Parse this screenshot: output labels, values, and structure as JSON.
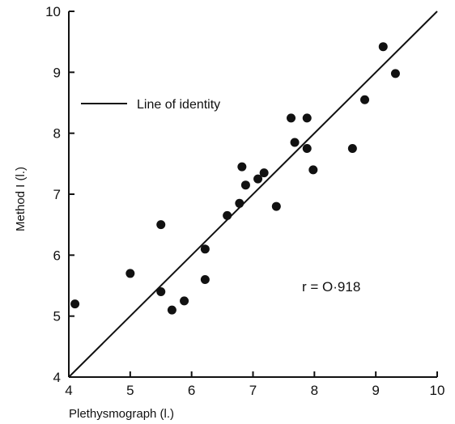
{
  "chart_data": {
    "type": "scatter",
    "title": "",
    "xlabel": "Plethysmograph (l.)",
    "ylabel": "Method I (l.)",
    "xlim": [
      4,
      10
    ],
    "ylim": [
      4,
      10
    ],
    "xticks": [
      "4",
      "5",
      "6",
      "7",
      "8",
      "9",
      "10"
    ],
    "yticks": [
      "4",
      "5",
      "6",
      "7",
      "8",
      "9",
      "10"
    ],
    "grid": false,
    "legend": {
      "placement": "top-left",
      "entries": [
        "Line of identity"
      ]
    },
    "annotations": [
      "r = O·918"
    ],
    "reference_line": {
      "name": "Line of identity",
      "from": [
        4,
        4
      ],
      "to": [
        10,
        10
      ]
    },
    "series": [
      {
        "x": [
          4.1,
          5.0,
          5.5,
          5.5,
          5.68,
          5.88,
          6.22,
          6.22,
          6.58,
          6.78,
          6.82,
          6.88,
          7.08,
          7.18,
          7.38,
          7.62,
          7.68,
          7.88,
          7.88,
          7.98,
          8.62,
          8.82,
          9.12,
          9.32
        ],
        "y": [
          5.2,
          5.7,
          6.5,
          5.4,
          5.1,
          5.25,
          6.1,
          5.6,
          6.65,
          6.85,
          7.45,
          7.15,
          7.25,
          7.35,
          6.8,
          8.25,
          7.85,
          8.25,
          7.75,
          7.4,
          7.75,
          8.55,
          9.42,
          8.98
        ]
      }
    ]
  }
}
